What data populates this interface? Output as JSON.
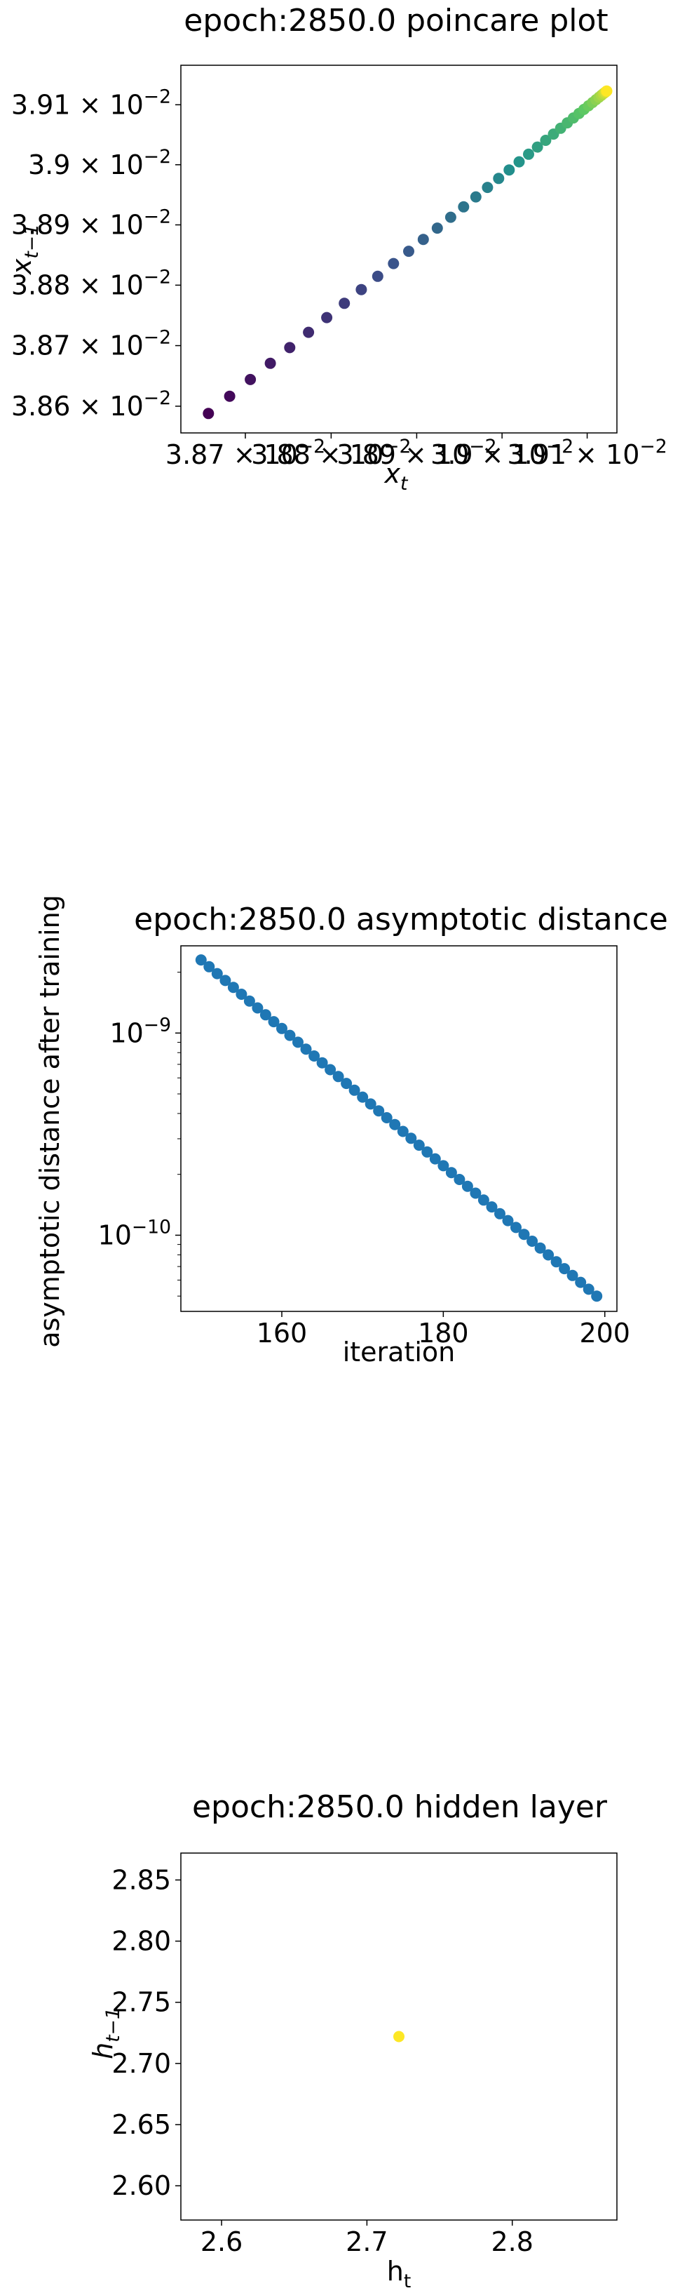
{
  "chart_data": [
    {
      "type": "scatter",
      "title": "epoch:2850.0 poincare plot",
      "xlabel": "x_t",
      "ylabel": "x_{t-1}",
      "xscale": "log",
      "yscale": "log",
      "xlim": [
        0.038625,
        0.039135
      ],
      "ylim": [
        0.038556,
        0.039166
      ],
      "x_tick_labels": [
        "3.87 × 10^{-2}",
        "3.88 × 10^{-2}",
        "3.89 × 10^{-2}",
        "3.9 × 10^{-2}",
        "3.91 × 10^{-2}"
      ],
      "y_tick_labels": [
        "3.86 × 10^{-2}",
        "3.87 × 10^{-2}",
        "3.88 × 10^{-2}",
        "3.89 × 10^{-2}",
        "3.9 × 10^{-2}",
        "3.91 × 10^{-2}"
      ],
      "colormap": "viridis",
      "point_count": 40,
      "x_range": [
        0.038657,
        0.039123
      ],
      "y_range": [
        0.038588,
        0.039123
      ],
      "grid": false
    },
    {
      "type": "scatter",
      "title": "epoch:2850.0 asymptotic distance",
      "xlabel": "iteration",
      "ylabel": "asymptotic distance after training",
      "yscale": "log",
      "xlim": [
        147.5,
        201.5
      ],
      "ylim": [
        4.2e-11,
        2.7e-09
      ],
      "x_ticks": [
        160,
        180,
        200
      ],
      "y_tick_labels": [
        "10^{-9}",
        "10^{-10}"
      ],
      "x": [
        150,
        199
      ],
      "y_start": 2.3e-09,
      "y_end": 5e-11,
      "step": 1,
      "color": "#1f77b4",
      "grid": false
    },
    {
      "type": "scatter",
      "title": "epoch:2850.0 hidden layer",
      "xlabel": "h_t",
      "ylabel": "h_{t-1}",
      "xlim": [
        2.572,
        2.872
      ],
      "ylim": [
        2.572,
        2.872
      ],
      "x_ticks": [
        "2.6",
        "2.7",
        "2.8"
      ],
      "y_ticks": [
        "2.60",
        "2.65",
        "2.70",
        "2.75",
        "2.80",
        "2.85"
      ],
      "points": [
        {
          "x": 2.722,
          "y": 2.722
        }
      ],
      "color": "#fde725",
      "grid": false
    }
  ]
}
